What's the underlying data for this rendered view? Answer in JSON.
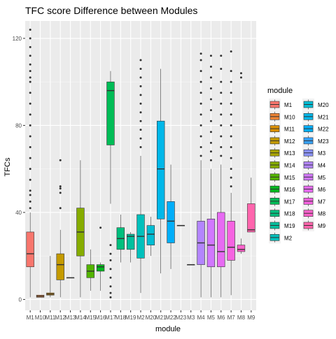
{
  "chart_data": {
    "type": "boxplot",
    "title": "TFC score Difference between Modules",
    "xlabel": "module",
    "ylabel": "TFCs",
    "ylim": [
      -5,
      128
    ],
    "yticks": [
      0,
      40,
      80,
      120
    ],
    "grid": true,
    "legend_title": "module",
    "legend_position": "right",
    "categories": [
      "M1",
      "M10",
      "M11",
      "M12",
      "M13",
      "M14",
      "M15",
      "M16",
      "M17",
      "M18",
      "M19",
      "M2",
      "M20",
      "M21",
      "M22",
      "M23",
      "M3",
      "M4",
      "M5",
      "M6",
      "M7",
      "M8",
      "M9"
    ],
    "series": [
      {
        "name": "M1",
        "color": "#F8766D",
        "min": 1,
        "q1": 15,
        "median": 21,
        "q3": 31,
        "max": 40,
        "outliers": [
          42,
          45,
          48,
          50,
          55,
          60,
          65,
          70,
          75,
          80,
          85,
          90,
          95,
          100,
          102,
          105,
          108,
          112,
          116,
          120,
          124
        ]
      },
      {
        "name": "M10",
        "color": "#EB8335",
        "min": 1,
        "q1": 1,
        "median": 1.5,
        "q3": 2,
        "max": 2,
        "outliers": []
      },
      {
        "name": "M11",
        "color": "#DA8F00",
        "min": 1,
        "q1": 2,
        "median": 2.5,
        "q3": 3,
        "max": 20,
        "outliers": []
      },
      {
        "name": "M12",
        "color": "#C49A00",
        "min": 1,
        "q1": 9,
        "median": 16,
        "q3": 21,
        "max": 32,
        "outliers": [
          42,
          49,
          51,
          52,
          64
        ]
      },
      {
        "name": "M13",
        "color": "#A9A400",
        "min": 10,
        "q1": 10,
        "median": 10,
        "q3": 10,
        "max": 10,
        "outliers": []
      },
      {
        "name": "M14",
        "color": "#86AC00",
        "min": 1,
        "q1": 20,
        "median": 31,
        "q3": 42,
        "max": 64,
        "outliers": []
      },
      {
        "name": "M15",
        "color": "#53B400",
        "min": 4,
        "q1": 10,
        "median": 13,
        "q3": 16,
        "max": 23,
        "outliers": []
      },
      {
        "name": "M16",
        "color": "#00B81F",
        "min": 4,
        "q1": 13,
        "median": 15,
        "q3": 16,
        "max": 17,
        "outliers": [
          33
        ]
      },
      {
        "name": "M17",
        "color": "#00BC56",
        "min": 44,
        "q1": 71,
        "median": 96,
        "q3": 100,
        "max": 105,
        "outliers": [
          1,
          3,
          6,
          10,
          14,
          18,
          21,
          25
        ]
      },
      {
        "name": "M18",
        "color": "#00BF7D",
        "min": 17,
        "q1": 23,
        "median": 28,
        "q3": 33,
        "max": 39,
        "outliers": []
      },
      {
        "name": "M19",
        "color": "#00C09E",
        "min": 17,
        "q1": 23,
        "median": 29,
        "q3": 30,
        "max": 31,
        "outliers": []
      },
      {
        "name": "M2",
        "color": "#00C0BC",
        "min": 3,
        "q1": 19,
        "median": 29,
        "q3": 39,
        "max": 66,
        "outliers": [
          70,
          74,
          78,
          82,
          86,
          90,
          94,
          98,
          102,
          106,
          110
        ]
      },
      {
        "name": "M20",
        "color": "#00BDD4",
        "min": 20,
        "q1": 25,
        "median": 30,
        "q3": 34,
        "max": 38,
        "outliers": []
      },
      {
        "name": "M21",
        "color": "#00B7E9",
        "min": 12,
        "q1": 37,
        "median": 60,
        "q3": 82,
        "max": 106,
        "outliers": []
      },
      {
        "name": "M22",
        "color": "#00AEFA",
        "min": 14,
        "q1": 26,
        "median": 36,
        "q3": 45,
        "max": 62,
        "outliers": []
      },
      {
        "name": "M23",
        "color": "#35A2FF",
        "min": 34,
        "q1": 34,
        "median": 34,
        "q3": 34,
        "max": 34,
        "outliers": []
      },
      {
        "name": "M3",
        "color": "#8B93FF",
        "min": 16,
        "q1": 16,
        "median": 16,
        "q3": 16,
        "max": 16,
        "outliers": []
      },
      {
        "name": "M4",
        "color": "#B385FF",
        "min": 1,
        "q1": 16,
        "median": 26,
        "q3": 36,
        "max": 64,
        "outliers": [
          66,
          70,
          75,
          80,
          85,
          90,
          95,
          100,
          105,
          110,
          113
        ]
      },
      {
        "name": "M5",
        "color": "#D177FF",
        "min": 1,
        "q1": 15,
        "median": 25,
        "q3": 37,
        "max": 60,
        "outliers": [
          64,
          68,
          72,
          77,
          82,
          87,
          92,
          97,
          102,
          107,
          112
        ]
      },
      {
        "name": "M6",
        "color": "#E76BF3",
        "min": 1,
        "q1": 15,
        "median": 22,
        "q3": 40,
        "max": 62,
        "outliers": [
          66,
          70,
          75,
          80,
          85,
          90,
          95,
          100,
          106,
          112
        ]
      },
      {
        "name": "M7",
        "color": "#F663E1",
        "min": 2,
        "q1": 18,
        "median": 24,
        "q3": 36,
        "max": 49,
        "outliers": [
          52,
          56,
          60,
          65,
          70,
          75,
          80,
          85,
          90,
          95,
          100,
          105,
          114
        ]
      },
      {
        "name": "M8",
        "color": "#FE61CB",
        "min": 21,
        "q1": 22,
        "median": 23,
        "q3": 25,
        "max": 28,
        "outliers": [
          102,
          104
        ]
      },
      {
        "name": "M9",
        "color": "#FF65AD",
        "min": 31,
        "q1": 31,
        "median": 32,
        "q3": 44,
        "max": 56,
        "outliers": []
      }
    ]
  }
}
